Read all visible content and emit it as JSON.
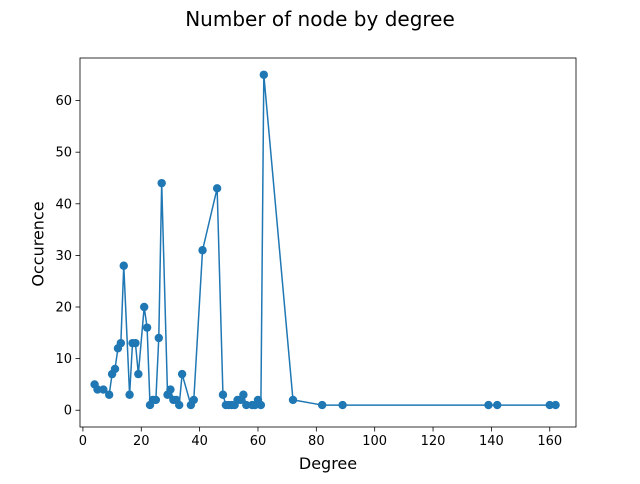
{
  "chart_data": {
    "type": "line",
    "title": "Number of node by degree",
    "xlabel": "Degree",
    "ylabel": "Occurence",
    "xlim": [
      -1,
      169
    ],
    "ylim": [
      -3.25,
      68.25
    ],
    "xticks": [
      0,
      20,
      40,
      60,
      80,
      100,
      120,
      140,
      160
    ],
    "yticks": [
      0,
      10,
      20,
      30,
      40,
      50,
      60
    ],
    "grid": false,
    "legend": "none",
    "color": "#1f77b4",
    "marker": "circle",
    "series": [
      {
        "x": [
          4,
          5,
          7,
          9,
          10,
          11,
          12,
          13,
          14,
          16,
          17,
          18,
          19,
          21,
          22,
          23,
          24,
          25,
          26,
          27,
          29,
          30,
          31,
          32,
          33,
          34,
          37,
          38,
          41,
          46,
          48,
          49,
          50,
          51,
          52,
          53,
          54,
          55,
          56,
          58,
          59,
          60,
          61,
          62,
          72,
          82,
          89,
          139,
          142,
          160,
          162
        ],
        "y": [
          5,
          4,
          4,
          3,
          7,
          8,
          12,
          13,
          28,
          3,
          13,
          13,
          7,
          20,
          16,
          1,
          2,
          2,
          14,
          44,
          3,
          4,
          2,
          2,
          1,
          7,
          1,
          2,
          31,
          43,
          3,
          1,
          1,
          1,
          1,
          2,
          2,
          3,
          1,
          1,
          1,
          2,
          1,
          65,
          2,
          1,
          1,
          1,
          1,
          1,
          1
        ]
      }
    ]
  }
}
